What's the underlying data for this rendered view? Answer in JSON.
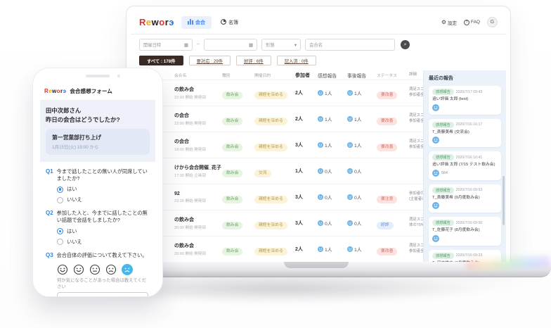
{
  "logo": {
    "letters": [
      {
        "ch": "R",
        "color": "#e0312e"
      },
      {
        "ch": "e",
        "color": "#f2a516"
      },
      {
        "ch": "w",
        "color": "#222222"
      },
      {
        "ch": "o",
        "color": "#e0312e"
      },
      {
        "ch": "r",
        "color": "#222222"
      },
      {
        "ch": "э",
        "color": "#2f6fd6"
      }
    ]
  },
  "laptop": {
    "nav": {
      "tabs": [
        {
          "label": "会合",
          "active": true,
          "icon": "bar-chart-icon"
        },
        {
          "label": "名簿",
          "active": false,
          "icon": "roster-icon"
        }
      ],
      "settings_label": "設定",
      "faq_label": "FAQ",
      "avatar_initial": "G"
    },
    "filters": {
      "date_placeholder": "開催日時",
      "range_separator": "~",
      "type_placeholder": "形態",
      "name_placeholder": "会合名"
    },
    "chips": [
      {
        "label": "すべて : 178件",
        "active": true
      },
      {
        "label": "要対応 : 29件",
        "active": false
      },
      {
        "label": "好評 : 6件",
        "active": false
      },
      {
        "label": "記入済 : 0件",
        "active": false
      }
    ],
    "table": {
      "headers": [
        "会合名",
        "種別",
        "開催目的",
        "参加者",
        "感想報告",
        "事後報告",
        "ステータス",
        "詳細"
      ],
      "rows": [
        {
          "name": "の飲み会",
          "sub": "22:00 開始 開発部",
          "type": "飲み会",
          "purpose": "親睦を深める",
          "participants": "2人",
          "answered": "1人",
          "extra": "1人",
          "status": {
            "label": "要改善",
            "tone": "red"
          },
          "detail": "満足スコア2以下の参加者が該当イベント参加者全体の30%以上占める"
        },
        {
          "name": "の会合",
          "sub": "22:00 開始 開発部",
          "type": "飲み会",
          "purpose": "親睦を深める",
          "participants": "2人",
          "answered": "1人",
          "extra": "1人",
          "status": {
            "label": "要改善",
            "tone": "red"
          },
          "detail": "満足スコア2以下の参加者が該当イベント参加者全体の30%以上占める"
        },
        {
          "name": "の会合",
          "sub": "18:00 開始 開発部",
          "type": "飲み会",
          "purpose": "親睦を深める",
          "participants": "3人",
          "answered": "1人",
          "extra": "1人",
          "status": {
            "label": "要改善",
            "tone": "red"
          },
          "detail": "満足スコア2以下の参加者が該当イベント参加者全体の30%以上占める"
        },
        {
          "name": "けから会合開催_花子",
          "sub": "17:30 開始 企画部",
          "type": "飲み会",
          "purpose": "交流",
          "participants": "1人",
          "answered": "0人",
          "extra": "0人",
          "status": null,
          "detail": ""
        },
        {
          "name": "92",
          "sub": "23:30 開始 開発部",
          "type": "飲み会",
          "purpose": "親睦を深める",
          "participants": "3人",
          "answered": "0人",
          "extra": "0人",
          "status": {
            "label": "要注意",
            "tone": "red"
          },
          "detail": "参加者の事後アンケート回収率が50%未満(主催者は除く)"
        },
        {
          "name": "の飲み会",
          "sub": "20:00 開始 開発部",
          "type": "飲み会",
          "purpose": "親睦を深める",
          "participants": "3人",
          "answered": "0人",
          "extra": "0人",
          "status": {
            "label": "好評",
            "tone": "blue"
          },
          "detail": "満足スコアに5をつけた参加者が参加者全体の70%以上占める"
        },
        {
          "name": "の飲み会",
          "sub": "20:00 開始 開発部",
          "type": "飲み会",
          "purpose": "親睦を深める",
          "participants": "2人",
          "answered": "1人",
          "extra": "1人",
          "status": {
            "label": "要改善",
            "tone": "red"
          },
          "detail": "満足スコア2以下の参加者が該当イベント参加者全体の30%以上占める"
        },
        {
          "name": "の会合",
          "sub": "20:00 開始 開発部",
          "type": "飲み会",
          "purpose": "親睦を深める",
          "participants": "2人",
          "answered": "1人",
          "extra": "1人",
          "status": {
            "label": "要改善",
            "tone": "red"
          },
          "detail": "満足スコア2以下の参加者が該当イベント参加者全体の30%以上占める"
        },
        {
          "name": "の会合",
          "sub": "19:00 開始 開発部",
          "type": "飲み会",
          "purpose": "親睦を深める",
          "participants": "2人",
          "answered": "1人",
          "extra": "1人",
          "status": {
            "label": "要改善",
            "tone": "red"
          },
          "detail": "満足スコア2以下の参加者が該当イベント参加者全体の30%以上占める"
        }
      ]
    },
    "reports": {
      "title": "最近の報告",
      "badge": "感想報告",
      "cards": [
        {
          "time": "2020/7/17 09:43",
          "name": "追い評価 太郎 (test)",
          "note": ""
        },
        {
          "time": "2020/7/16 16:17",
          "name": "T_斎藤美希 (交流会)",
          "note": ""
        },
        {
          "time": "2020/7/16 10:41",
          "name": "追い評価 太郎 (7/15 テスト飲み会)",
          "note": "564"
        },
        {
          "time": "2020/7/16 09:53",
          "name": "T_斎藤美希 (9月度飲み会)",
          "note": ""
        },
        {
          "time": "2020/7/16 09:50",
          "name": "T_佐藤花子 (8月度飲み会)",
          "note": ""
        },
        {
          "time": "2020/7/16 09:23",
          "name": "T_田中雄太 (7月度飲み会)",
          "note": ""
        },
        {
          "time": "2020/7/16 09:21",
          "name": "T_佐藤花子 (7月度飲み会)",
          "note": ""
        },
        {
          "time": "2020/7/16 09:20",
          "name": "T_佐藤花子 (懇親会だら..!?)",
          "note": ""
        }
      ]
    },
    "colors": {
      "accent_blue": "#4b82e8",
      "chip_active_brown": "#3a2a24",
      "badge_green": "#e6f4e1",
      "badge_yellow": "#fbf3d8",
      "badge_red": "#fbe3e1",
      "badge_blue": "#e4edfb",
      "panel_bg": "#ebf2fa"
    }
  },
  "phone": {
    "header_title": "会合感想フォーム",
    "greeting_line1": "田中次郎さん",
    "greeting_line2": "昨日の会合はどうでしたか?",
    "event": {
      "title": "第一営業部打ち上げ",
      "datetime": "1月15日(火) 19:00 から"
    },
    "questions": [
      {
        "no": "Q1",
        "text": "今まで話したことの無い人が同席していましたか?",
        "options": [
          "はい",
          "いいえ"
        ],
        "selected": 0
      },
      {
        "no": "Q2",
        "text": "参加した人と、今までに話したことの無い話題で会話をしましたか?",
        "options": [
          "はい",
          "いいえ"
        ],
        "selected": 0
      }
    ],
    "q3": {
      "no": "Q3",
      "text": "会合自体の評価について教えて下さい。",
      "selected_face": 4
    },
    "free_text_label": "何か気になることがあった場合は教えてください"
  }
}
